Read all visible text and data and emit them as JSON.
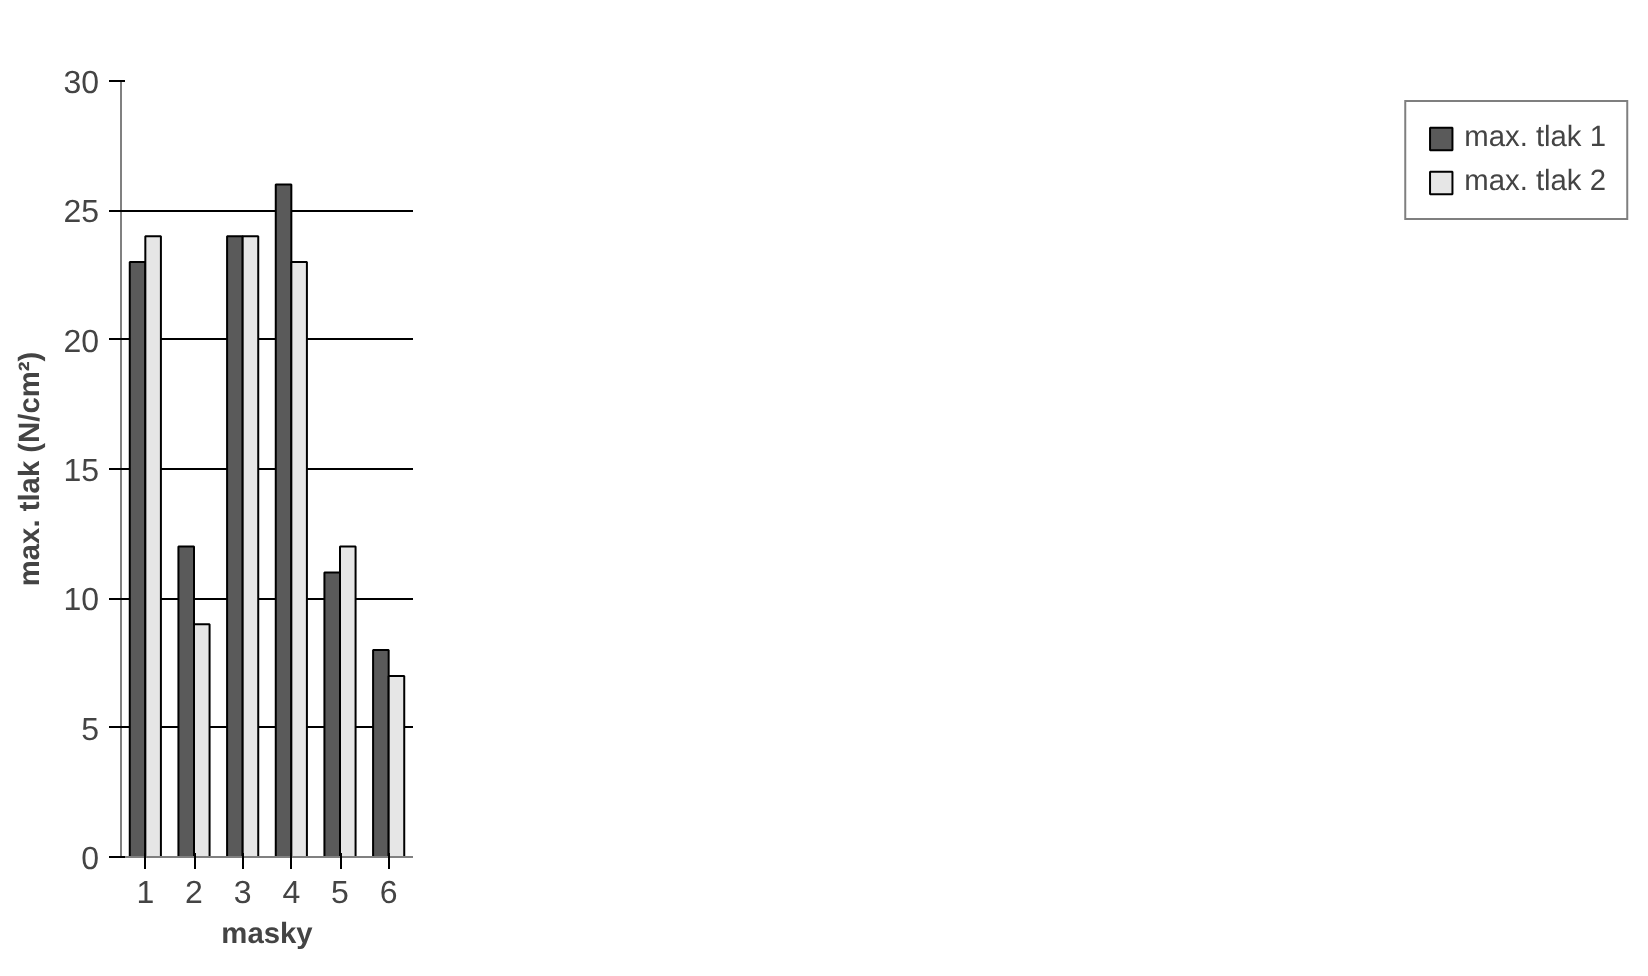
{
  "chart_data": {
    "type": "bar",
    "xlabel": "masky",
    "ylabel": "max. tlak (N/cm²)",
    "categories": [
      "1",
      "2",
      "3",
      "4",
      "5",
      "6"
    ],
    "series": [
      {
        "name": "max. tlak 1",
        "color": "#5a5a5a",
        "values": [
          23,
          12,
          24,
          26,
          11,
          8
        ]
      },
      {
        "name": "max. tlak 2",
        "color": "#e6e6e6",
        "values": [
          24,
          9,
          24,
          23,
          12,
          7
        ]
      }
    ],
    "ylim": [
      0,
      30
    ],
    "yticks": [
      0,
      5,
      10,
      15,
      20,
      25,
      30
    ],
    "grid": "y",
    "legend": "right"
  }
}
